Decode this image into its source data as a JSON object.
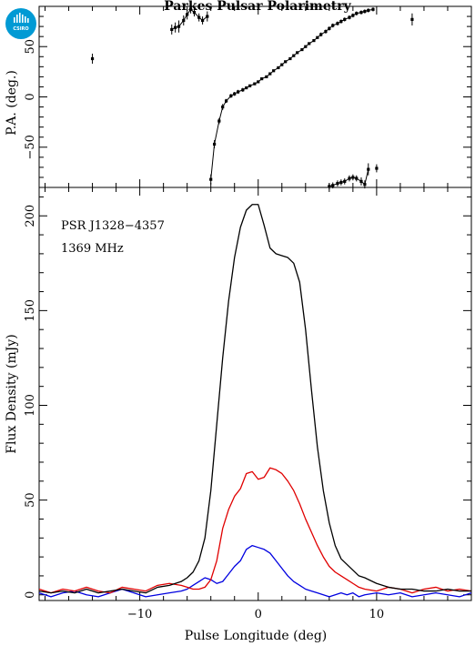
{
  "title": "Parkes Pulsar Polarimetry",
  "logo": {
    "label": "CSIRO",
    "color": "#009ad4"
  },
  "notes": [
    "PSR J1328−4357",
    "1369 MHz"
  ],
  "chart_data": [
    {
      "type": "scatter",
      "panel": "position-angle",
      "ylabel": "P.A. (deg.)",
      "xlim": [
        -18.5,
        18.0
      ],
      "ylim": [
        -90,
        90
      ],
      "yticks": [
        -50,
        0,
        50
      ],
      "error_bars": true,
      "series": [
        {
          "points": [
            [
              -14.0,
              38,
              5
            ],
            [
              -7.3,
              67,
              5
            ],
            [
              -7.0,
              69,
              5
            ],
            [
              -6.7,
              70,
              6
            ],
            [
              -6.3,
              76,
              5
            ],
            [
              -6.0,
              82,
              5
            ],
            [
              -5.7,
              87,
              4
            ],
            [
              -5.4,
              84,
              4
            ],
            [
              -5.0,
              79,
              4
            ],
            [
              -4.7,
              76,
              4
            ],
            [
              -4.3,
              80,
              5
            ],
            [
              -4.0,
              -82,
              5
            ],
            [
              -3.7,
              -47,
              4
            ],
            [
              -3.3,
              -24,
              3
            ],
            [
              -3.0,
              -10,
              3
            ],
            [
              -2.7,
              -4,
              2
            ],
            [
              -2.3,
              1,
              2
            ],
            [
              -2.0,
              3,
              2
            ],
            [
              -1.7,
              5,
              2
            ],
            [
              -1.3,
              7,
              2
            ],
            [
              -1.0,
              9,
              1
            ],
            [
              -0.7,
              11,
              1
            ],
            [
              -0.3,
              13,
              1
            ],
            [
              0.0,
              15,
              1
            ],
            [
              0.3,
              18,
              1
            ],
            [
              0.7,
              20,
              1
            ],
            [
              1.0,
              23,
              1
            ],
            [
              1.3,
              26,
              1
            ],
            [
              1.7,
              29,
              1
            ],
            [
              2.0,
              32,
              1
            ],
            [
              2.3,
              35,
              1
            ],
            [
              2.7,
              38,
              1
            ],
            [
              3.0,
              41,
              1
            ],
            [
              3.3,
              44,
              1
            ],
            [
              3.7,
              47,
              1
            ],
            [
              4.0,
              50,
              1
            ],
            [
              4.3,
              53,
              1
            ],
            [
              4.7,
              56,
              1
            ],
            [
              5.0,
              59,
              1
            ],
            [
              5.3,
              62,
              2
            ],
            [
              5.7,
              65,
              2
            ],
            [
              6.0,
              68,
              2
            ],
            [
              6.3,
              71,
              2
            ],
            [
              6.7,
              73,
              2
            ],
            [
              7.0,
              75,
              2
            ],
            [
              7.3,
              77,
              2
            ],
            [
              7.7,
              79,
              2
            ],
            [
              8.0,
              81,
              2
            ],
            [
              8.3,
              83,
              2
            ],
            [
              8.7,
              84,
              2
            ],
            [
              9.0,
              85,
              2
            ],
            [
              9.3,
              86,
              2
            ],
            [
              9.7,
              87,
              2
            ],
            [
              6.0,
              -89,
              3
            ],
            [
              6.3,
              -88,
              3
            ],
            [
              6.7,
              -86,
              3
            ],
            [
              7.0,
              -85,
              3
            ],
            [
              7.3,
              -84,
              3
            ],
            [
              7.7,
              -81,
              3
            ],
            [
              8.0,
              -80,
              3
            ],
            [
              8.3,
              -81,
              3
            ],
            [
              8.7,
              -84,
              4
            ],
            [
              9.0,
              -87,
              4
            ],
            [
              9.3,
              -72,
              6
            ],
            [
              10.0,
              -71,
              4
            ],
            [
              13.0,
              77,
              6
            ]
          ]
        }
      ]
    },
    {
      "type": "line",
      "panel": "profile",
      "xlabel": "Pulse Longitude (deg)",
      "ylabel": "Flux Density (mJy)",
      "xlim": [
        -18.5,
        18.0
      ],
      "ylim": [
        -3,
        215
      ],
      "xticks": [
        -10,
        0,
        10
      ],
      "yticks": [
        0,
        50,
        100,
        150,
        200
      ],
      "x": [
        -18.5,
        -17.5,
        -16.5,
        -15.5,
        -14.5,
        -13.5,
        -12.5,
        -11.5,
        -10.5,
        -9.5,
        -8.5,
        -7.5,
        -6.5,
        -6.0,
        -5.5,
        -5.0,
        -4.5,
        -4.0,
        -3.5,
        -3.0,
        -2.5,
        -2.0,
        -1.5,
        -1.0,
        -0.5,
        0.0,
        0.5,
        1.0,
        1.5,
        2.0,
        2.5,
        3.0,
        3.5,
        4.0,
        4.5,
        5.0,
        5.5,
        6.0,
        6.5,
        7.0,
        7.5,
        8.0,
        8.5,
        9.0,
        10.0,
        11.0,
        12.0,
        13.0,
        14.0,
        15.0,
        16.0,
        17.0,
        18.0
      ],
      "series": [
        {
          "color": "#000000",
          "values": [
            2,
            1,
            2,
            1,
            3,
            1,
            2,
            3,
            2,
            1,
            4,
            5,
            7,
            9,
            12,
            18,
            30,
            55,
            90,
            125,
            155,
            178,
            194,
            203,
            206,
            206,
            195,
            183,
            180,
            179,
            178,
            175,
            165,
            140,
            108,
            78,
            55,
            38,
            26,
            19,
            16,
            13,
            10,
            9,
            6,
            4,
            3,
            3,
            2,
            2,
            3,
            2,
            2
          ]
        },
        {
          "color": "#e00000",
          "values": [
            3,
            1,
            3,
            2,
            4,
            2,
            1,
            4,
            3,
            2,
            5,
            6,
            5,
            4,
            3,
            3,
            4,
            8,
            18,
            35,
            45,
            52,
            56,
            64,
            65,
            61,
            62,
            67,
            66,
            64,
            60,
            55,
            48,
            40,
            33,
            26,
            20,
            15,
            12,
            10,
            8,
            6,
            4,
            3,
            2,
            4,
            3,
            1,
            3,
            4,
            2,
            3,
            2
          ]
        },
        {
          "color": "#0000e0",
          "values": [
            1,
            -1,
            1,
            2,
            0,
            -1,
            1,
            3,
            1,
            -1,
            0,
            1,
            2,
            3,
            5,
            7,
            9,
            8,
            6,
            7,
            11,
            15,
            18,
            24,
            26,
            25,
            24,
            22,
            18,
            14,
            10,
            7,
            5,
            3,
            2,
            1,
            0,
            -1,
            0,
            1,
            0,
            1,
            -1,
            0,
            1,
            0,
            1,
            -1,
            0,
            1,
            0,
            -1,
            1
          ]
        }
      ]
    }
  ]
}
